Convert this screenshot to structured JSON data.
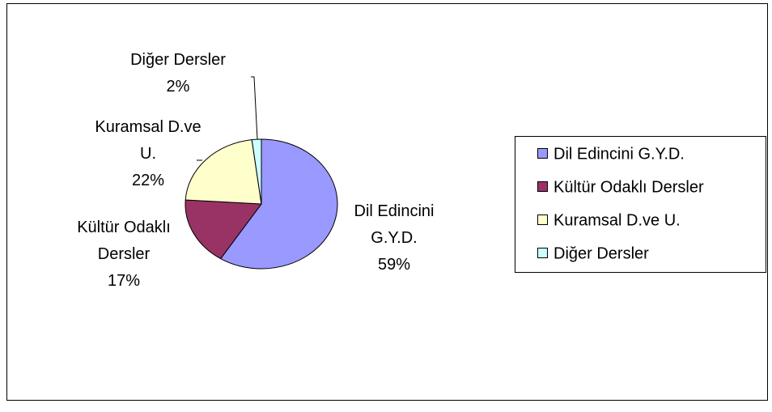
{
  "chart_data": {
    "type": "pie",
    "categories": [
      "Dil Edincini G.Y.D.",
      "Kültür Odaklı Dersler",
      "Kuramsal D.ve U.",
      "Diğer Dersler"
    ],
    "values": [
      59,
      17,
      22,
      2
    ],
    "value_labels": [
      "59%",
      "17%",
      "22%",
      "2%"
    ],
    "colors": [
      "#9999ff",
      "#993366",
      "#ffffcc",
      "#ccffff"
    ],
    "legend": "right"
  }
}
